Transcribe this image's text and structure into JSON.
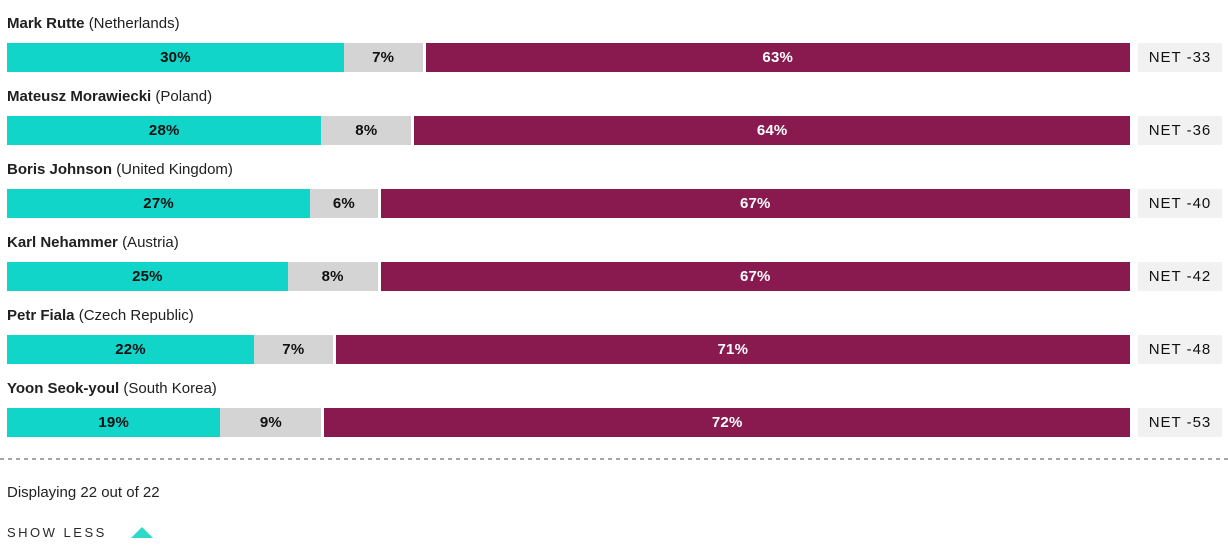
{
  "chart_data": {
    "type": "bar",
    "subtype": "horizontal-stacked",
    "segments_order": [
      "positive",
      "neutral",
      "negative"
    ],
    "colors": {
      "positive": "#10d5c8",
      "neutral": "#d4d4d4",
      "negative": "#881a50",
      "net_badge_bg": "#f1f1f1"
    },
    "x_range_pct": [
      0,
      100
    ],
    "grid": false,
    "legend": false,
    "rows": [
      {
        "name": "Mark Rutte",
        "country": "Netherlands",
        "positive": 30,
        "neutral": 7,
        "negative": 63,
        "positive_label": "30%",
        "neutral_label": "7%",
        "negative_label": "63%",
        "net_label": "NET -33"
      },
      {
        "name": "Mateusz Morawiecki",
        "country": "Poland",
        "positive": 28,
        "neutral": 8,
        "negative": 64,
        "positive_label": "28%",
        "neutral_label": "8%",
        "negative_label": "64%",
        "net_label": "NET -36"
      },
      {
        "name": "Boris Johnson",
        "country": "United Kingdom",
        "positive": 27,
        "neutral": 6,
        "negative": 67,
        "positive_label": "27%",
        "neutral_label": "6%",
        "negative_label": "67%",
        "net_label": "NET -40"
      },
      {
        "name": "Karl Nehammer",
        "country": "Austria",
        "positive": 25,
        "neutral": 8,
        "negative": 67,
        "positive_label": "25%",
        "neutral_label": "8%",
        "negative_label": "67%",
        "net_label": "NET -42"
      },
      {
        "name": "Petr Fiala",
        "country": "Czech Republic",
        "positive": 22,
        "neutral": 7,
        "negative": 71,
        "positive_label": "22%",
        "neutral_label": "7%",
        "negative_label": "71%",
        "net_label": "NET -48"
      },
      {
        "name": "Yoon Seok-youl",
        "country": "South Korea",
        "positive": 19,
        "neutral": 9,
        "negative": 72,
        "positive_label": "19%",
        "neutral_label": "9%",
        "negative_label": "72%",
        "net_label": "NET -53"
      }
    ]
  },
  "footer": {
    "displaying_text": "Displaying 22 out of 22",
    "show_less_label": "SHOW LESS"
  }
}
